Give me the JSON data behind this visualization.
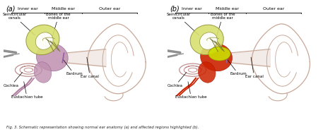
{
  "fig_label_a": "(a)",
  "fig_label_b": "(b)",
  "bg_color": "#ffffff",
  "caption_text": "Fig. 3. Schematic representation showing normal ear anatomy (a) and affected regions highlighted (b).",
  "section_labels": [
    "Inner ear",
    "Middle ear",
    "Outer ear"
  ],
  "anatomy_labels_a": [
    "Semicircular\ncanals",
    "Bones of the\nmiddle ear",
    "Cochlea",
    "Eardrum",
    "Eustachian tube",
    "Ear canal"
  ],
  "anatomy_labels_b": [
    "Semicircular\ncanals",
    "Bones of the\nmiddle ear",
    "Cochlea",
    "Eardrum",
    "Eustachian tube",
    "Ear canal"
  ],
  "pinna_color": "#c8a898",
  "pinna_lw": 0.9,
  "cochlea_color": "#c09090",
  "semicanal_fill": "#d8e070",
  "semicanal_edge": "#909030",
  "middle_ear_fill_a": "#c090b0",
  "middle_ear_fill_b": "#cc2200",
  "highlight_yellow": "#ccdd00",
  "eustachian_color": "#b080a0",
  "label_fontsize": 4.0,
  "section_fontsize": 4.5,
  "panel_label_fontsize": 7,
  "fig_width": 4.74,
  "fig_height": 1.87,
  "dpi": 100
}
